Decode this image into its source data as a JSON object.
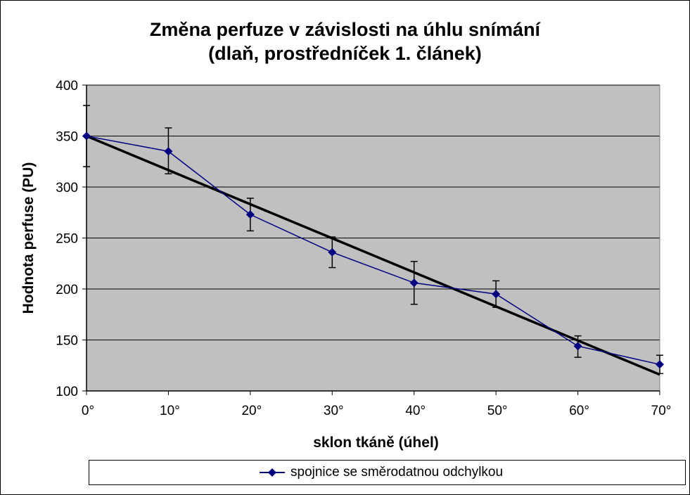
{
  "chart_data": {
    "type": "line",
    "title_line1": "Změna perfuze v závislosti na úhlu snímání",
    "title_line2": "(dlaň, prostředníček 1. článek)",
    "xlabel": "sklon tkáně (úhel)",
    "ylabel": "Hodnota perfuse (PU)",
    "categories": [
      "0°",
      "10°",
      "20°",
      "30°",
      "40°",
      "50°",
      "60°",
      "70°"
    ],
    "yticks": [
      100,
      150,
      200,
      250,
      300,
      350,
      400
    ],
    "ylim": [
      100,
      400
    ],
    "grid": true,
    "legend_position": "bottom",
    "series": [
      {
        "name": "spojnice se směrodatnou odchylkou",
        "color": "#000080",
        "marker": "diamond",
        "values": [
          350,
          335,
          273,
          236,
          206,
          195,
          144,
          126
        ],
        "error_upper": [
          380,
          358,
          289,
          251,
          227,
          208,
          154,
          135
        ],
        "error_lower": [
          320,
          313,
          257,
          221,
          185,
          182,
          133,
          117
        ]
      }
    ],
    "trendline": {
      "color": "#000000",
      "start": [
        0,
        350
      ],
      "end": [
        70,
        116
      ]
    },
    "plot_background": "#c0c0c0"
  }
}
